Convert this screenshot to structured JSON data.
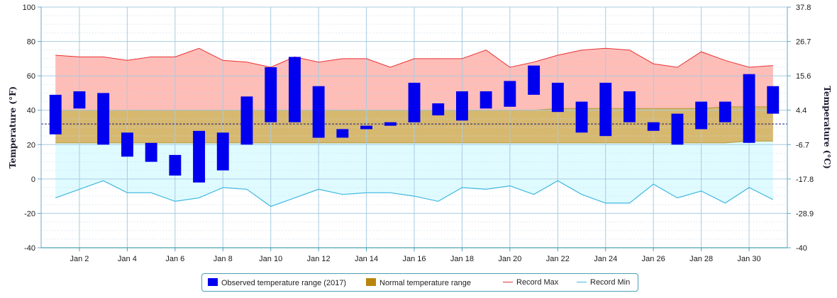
{
  "chart_data": {
    "type": "bar",
    "x_tick_labels": [
      "Jan 2",
      "Jan 4",
      "Jan 6",
      "Jan 8",
      "Jan 10",
      "Jan 12",
      "Jan 14",
      "Jan 16",
      "Jan 18",
      "Jan 20",
      "Jan 22",
      "Jan 24",
      "Jan 26",
      "Jan 28",
      "Jan 30"
    ],
    "days": [
      1,
      2,
      3,
      4,
      5,
      6,
      7,
      8,
      9,
      10,
      11,
      12,
      13,
      14,
      15,
      16,
      17,
      18,
      19,
      20,
      21,
      22,
      23,
      24,
      25,
      26,
      27,
      28,
      29,
      30,
      31
    ],
    "ylabel_left": "Temperature (°F)",
    "ylabel_right": "Temperature (°C)",
    "ylim": [
      -40,
      100
    ],
    "y_ticks_left": [
      -40,
      -20,
      0,
      20,
      40,
      60,
      80,
      100
    ],
    "y_ticks_right": [
      "-40",
      "-28.9",
      "-17.8",
      "-6.7",
      "4.4",
      "15.6",
      "26.7",
      "37.8"
    ],
    "freezing_line": 32,
    "series": [
      {
        "name": "Observed temperature range (2017)",
        "color": "#0000ee",
        "low": [
          26,
          41,
          20,
          13,
          10,
          2,
          -2,
          5,
          20,
          33,
          33,
          24,
          24,
          29,
          31,
          33,
          37,
          34,
          41,
          42,
          49,
          39,
          27,
          25,
          33,
          28,
          20,
          29,
          33,
          21,
          38
        ],
        "high": [
          49,
          51,
          50,
          27,
          21,
          14,
          28,
          27,
          48,
          65,
          71,
          54,
          29,
          31,
          33,
          56,
          44,
          51,
          51,
          57,
          66,
          56,
          45,
          56,
          51,
          33,
          38,
          45,
          45,
          61,
          54
        ]
      },
      {
        "name": "Normal temperature range",
        "color": "#b8860b",
        "low": [
          21,
          21,
          21,
          21,
          21,
          21,
          21,
          21,
          21,
          21,
          21,
          21,
          21,
          21,
          21,
          21,
          21,
          21,
          21,
          21,
          21,
          21,
          21,
          21,
          21,
          21,
          21,
          21,
          21,
          22,
          22
        ],
        "high": [
          40,
          40,
          40,
          40,
          40,
          40,
          40,
          40,
          40,
          40,
          40,
          40,
          40,
          40,
          40,
          40,
          40,
          40,
          40,
          40,
          40,
          41,
          41,
          41,
          41,
          41,
          41,
          41,
          42,
          42,
          42
        ]
      },
      {
        "name": "Record Max",
        "color": "#e83030",
        "values": [
          72,
          71,
          71,
          69,
          71,
          71,
          76,
          69,
          68,
          65,
          71,
          68,
          70,
          70,
          65,
          70,
          70,
          70,
          75,
          65,
          68,
          72,
          75,
          76,
          75,
          67,
          65,
          74,
          69,
          65,
          66
        ]
      },
      {
        "name": "Record Min",
        "color": "#3fb8e0",
        "values": [
          -11,
          -6,
          -1,
          -8,
          -8,
          -13,
          -11,
          -5,
          -6,
          -16,
          -11,
          -6,
          -9,
          -8,
          -8,
          -10,
          -13,
          -5,
          -6,
          -4,
          -9,
          -1,
          -9,
          -14,
          -14,
          -3,
          -11,
          -7,
          -14,
          -5,
          -12
        ]
      }
    ]
  }
}
